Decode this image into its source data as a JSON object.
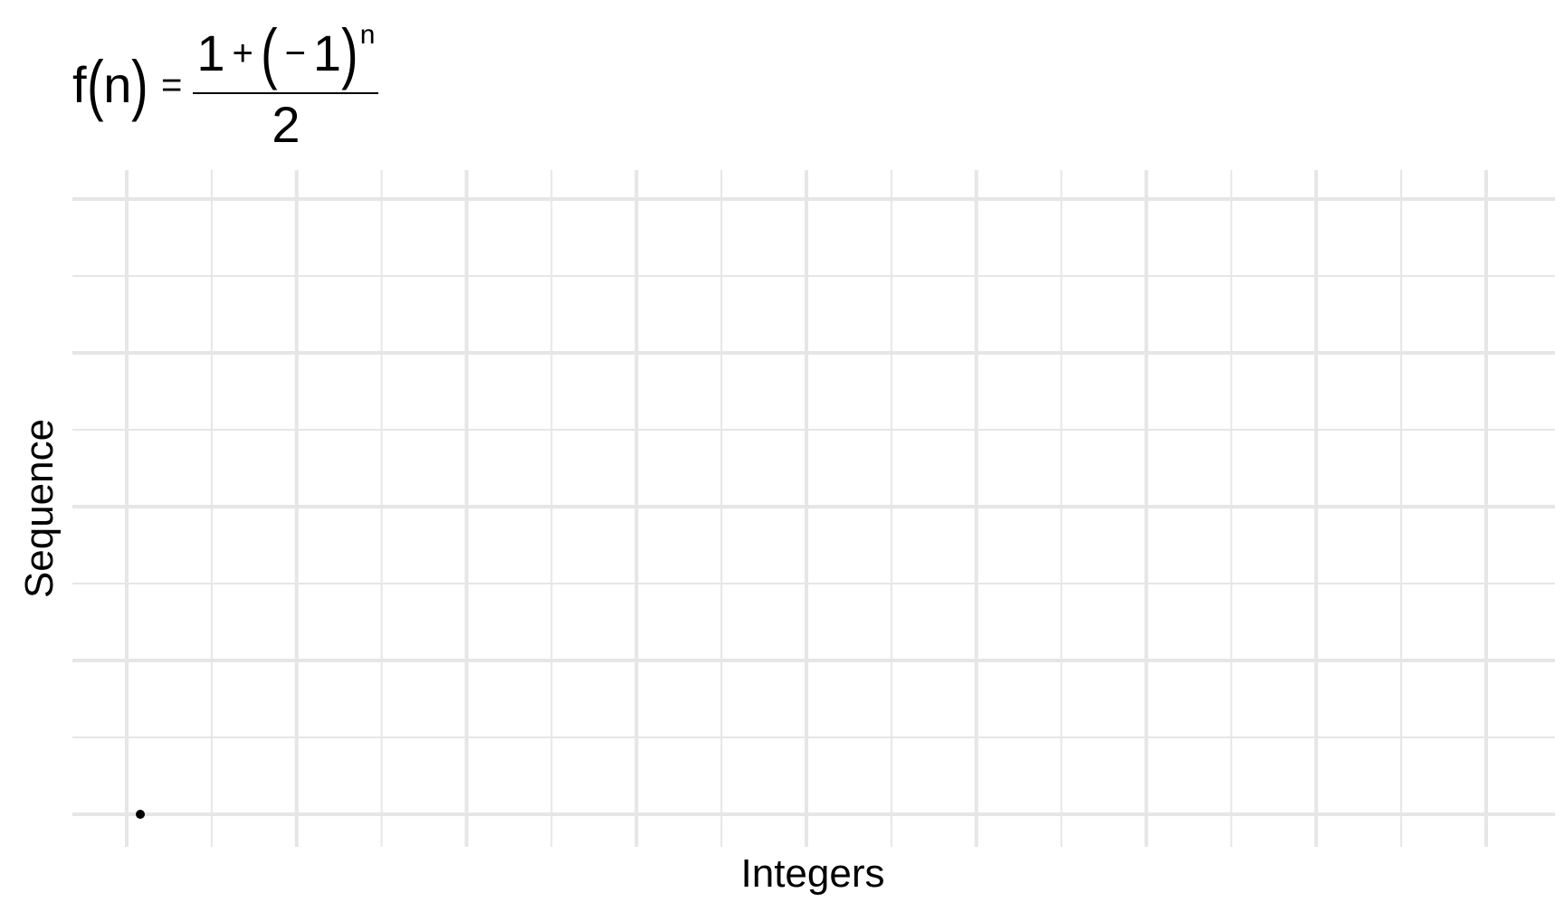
{
  "formula": {
    "lhs_name": "f",
    "lhs_var": "n",
    "lparen": "(",
    "rparen": ")",
    "equals": "=",
    "num_one": "1",
    "num_plus": "+",
    "num_minus": "−",
    "num_inner_one": "1",
    "num_exponent": "n",
    "denominator": "2"
  },
  "chart_data": {
    "type": "scatter",
    "xlabel": "Integers",
    "ylabel": "Sequence",
    "xlim": [
      0,
      8
    ],
    "ylim": [
      0,
      8
    ],
    "grid": true,
    "colors": {
      "grid": "#e6e6e6",
      "point": "#000000",
      "background": "#ffffff"
    },
    "series": [
      {
        "x": [
          0.08
        ],
        "y": [
          0
        ]
      }
    ]
  }
}
